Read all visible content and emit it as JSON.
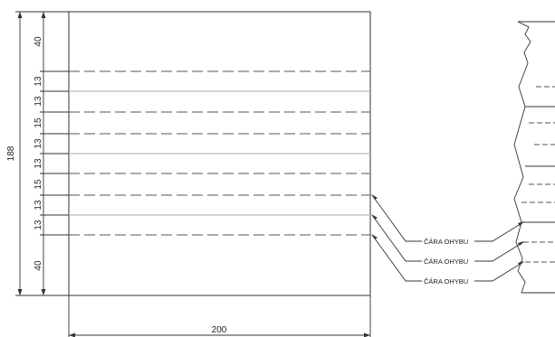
{
  "dimensions": {
    "total_height": "188",
    "width": "200",
    "segments": [
      "40",
      "13",
      "13",
      "15",
      "13",
      "13",
      "15",
      "13",
      "13",
      "40"
    ]
  },
  "callouts": [
    {
      "label": "ČÁRA OHYBU"
    },
    {
      "label": "ČÁRA OHYBU"
    },
    {
      "label": "ČÁRA OHYBU"
    }
  ],
  "colors": {
    "line": "#333333",
    "dashed": "#555555",
    "fold_solid": "#aaaaaa"
  }
}
